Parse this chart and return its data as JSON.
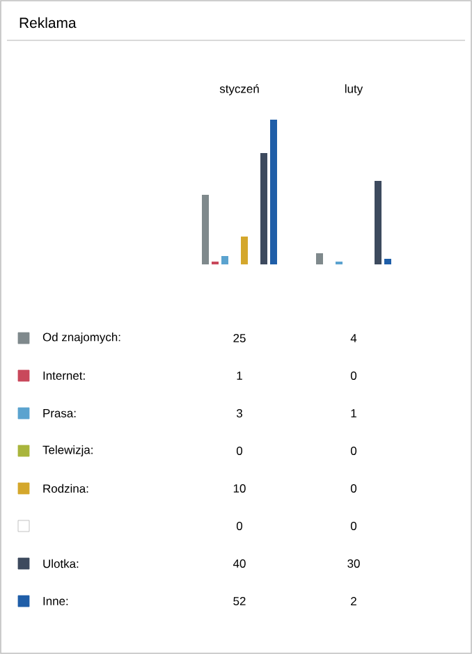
{
  "chart_data": {
    "type": "bar",
    "title": "Reklama",
    "categories": [
      "styczeń",
      "luty"
    ],
    "legend": "bottom",
    "data_labels": true,
    "series": [
      {
        "name": "Od znajomych:",
        "color": "#7f898c",
        "values": [
          25,
          4
        ]
      },
      {
        "name": "Internet:",
        "color": "#c9485b",
        "values": [
          1,
          0
        ]
      },
      {
        "name": "Prasa:",
        "color": "#5ba3cf",
        "values": [
          3,
          1
        ]
      },
      {
        "name": "Telewizja:",
        "color": "#a9b53c",
        "values": [
          0,
          0
        ]
      },
      {
        "name": "Rodzina:",
        "color": "#d4a72c",
        "values": [
          10,
          0
        ]
      },
      {
        "color": "#ffffff",
        "values": [
          0,
          0
        ]
      },
      {
        "name": "Ulotka:",
        "color": "#3d4a5e",
        "values": [
          40,
          30
        ]
      },
      {
        "name": "Inne:",
        "color": "#1f5ea8",
        "values": [
          52,
          2
        ]
      }
    ]
  }
}
